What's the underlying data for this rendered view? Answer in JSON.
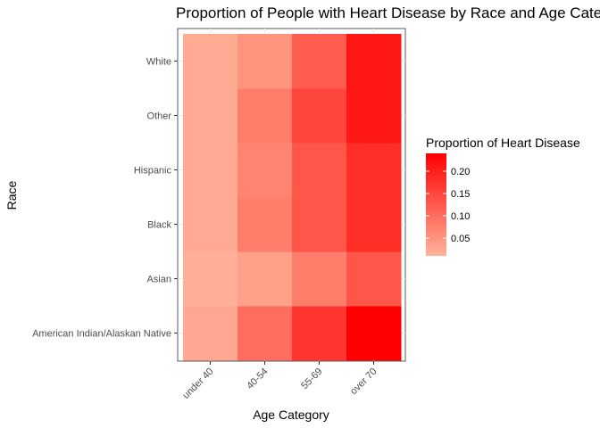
{
  "chart_data": {
    "type": "heatmap",
    "title": "Proportion of People with Heart Disease by Race and Age Category",
    "xlabel": "Age Category",
    "ylabel": "Race",
    "x": [
      "under 40",
      "40-54",
      "55-69",
      "over 70"
    ],
    "y": [
      "American Indian/Alaskan Native",
      "Asian",
      "Black",
      "Hispanic",
      "Other",
      "White"
    ],
    "values": [
      [
        0.025,
        0.1,
        0.17,
        0.24
      ],
      [
        0.015,
        0.035,
        0.08,
        0.13
      ],
      [
        0.02,
        0.08,
        0.13,
        0.18
      ],
      [
        0.02,
        0.07,
        0.13,
        0.18
      ],
      [
        0.02,
        0.08,
        0.15,
        0.21
      ],
      [
        0.02,
        0.05,
        0.12,
        0.21
      ]
    ],
    "color_scale": {
      "low": "#FFB39A",
      "high": "#FF0000",
      "min": 0.01,
      "max": 0.24
    },
    "legend": {
      "title": "Proportion of Heart Disease",
      "ticks": [
        0.05,
        0.1,
        0.15,
        0.2
      ],
      "tick_labels": [
        "0.05",
        "0.10",
        "0.15",
        "0.20"
      ],
      "position": "right"
    },
    "grid": true
  }
}
